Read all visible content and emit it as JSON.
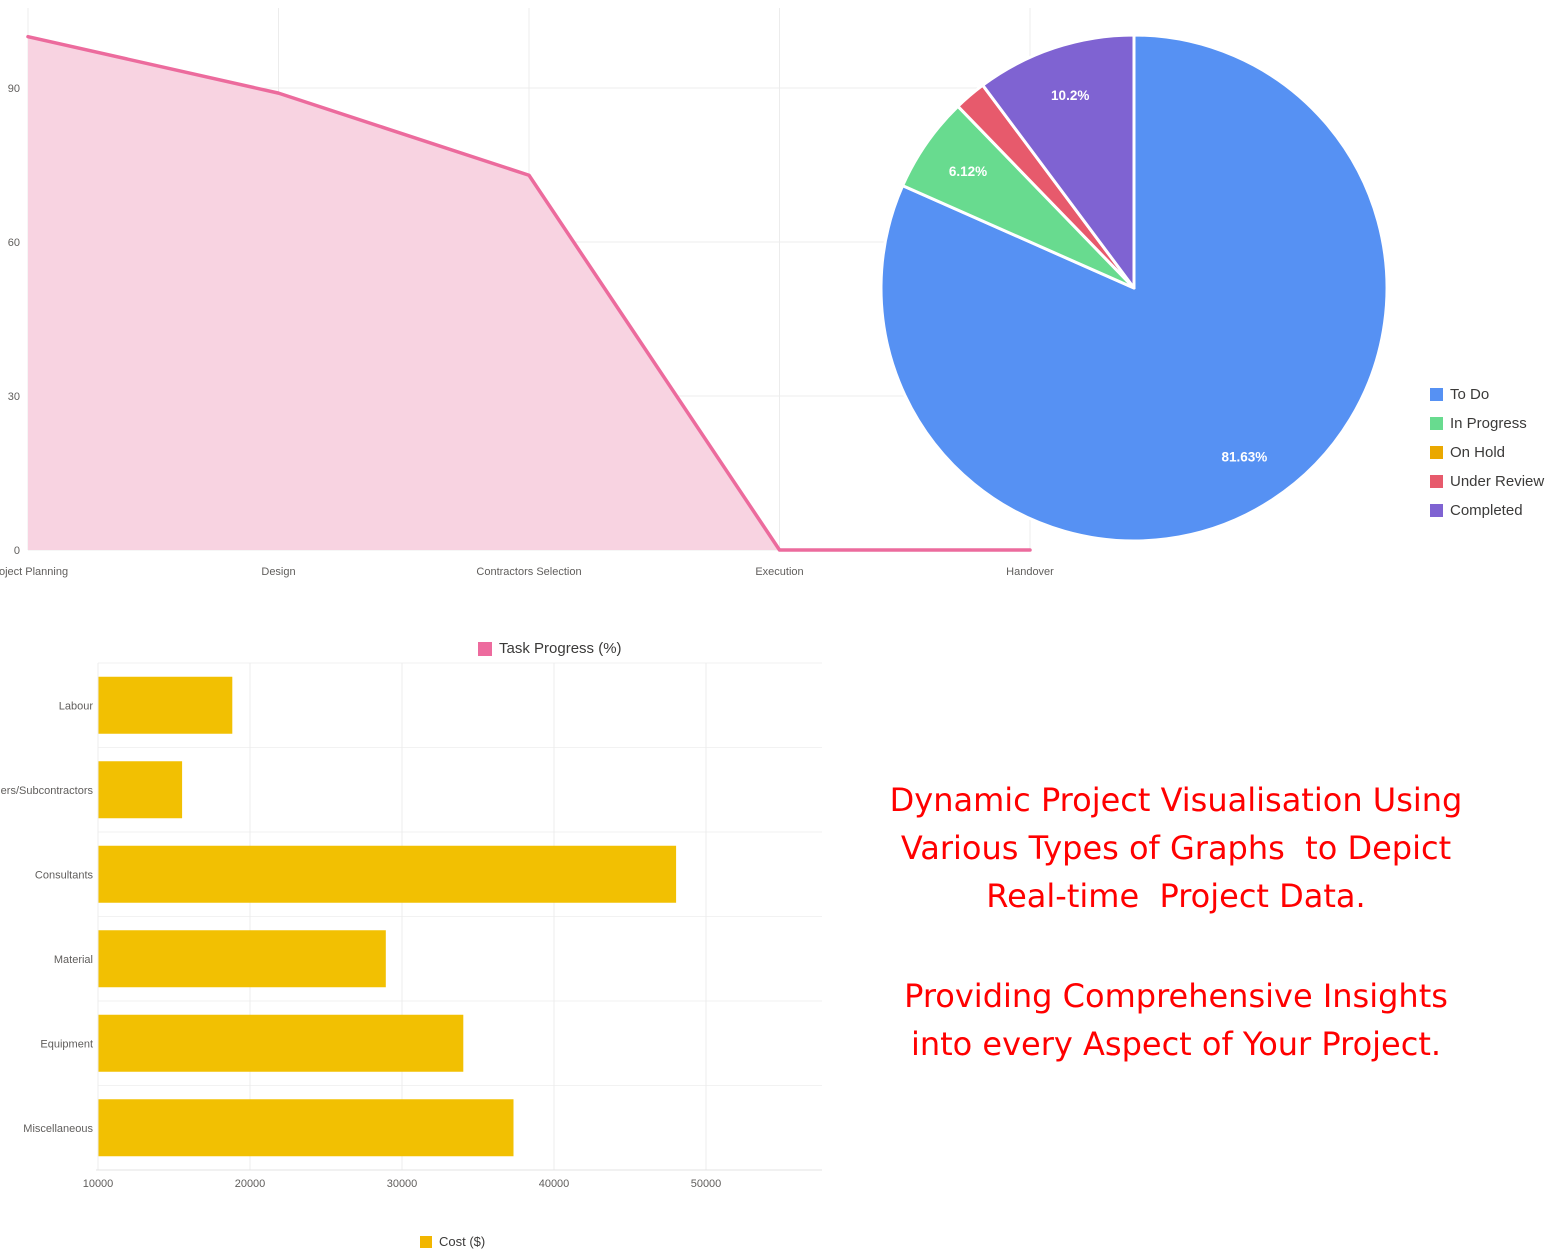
{
  "legends": {
    "area": {
      "label": "Task Progress (%)",
      "color": "#ed6b9e"
    },
    "bar": {
      "label": "Cost ($)",
      "color": "#f2b600"
    }
  },
  "caption": {
    "color": "#ff0000",
    "block1": [
      "Dynamic Project Visualisation Using",
      "Various Types of Graphs  to Depict",
      "Real-time  Project Data."
    ],
    "block2": [
      "Providing Comprehensive Insights",
      "into every Aspect of Your Project."
    ]
  },
  "chart_data": [
    {
      "id": "task-progress-area",
      "type": "area",
      "title": "",
      "legend": "Task Progress (%)",
      "legend_position": "bottom",
      "categories": [
        "Project Planning",
        "Design",
        "Contractors Selection",
        "Execution",
        "Handover"
      ],
      "values": [
        100,
        89,
        73,
        0,
        0
      ],
      "xlabel": "",
      "ylabel": "",
      "ylim": [
        0,
        100
      ],
      "yticks": [
        0,
        30,
        60,
        90
      ],
      "grid": true,
      "line_color": "#ec6b9d",
      "fill_color": "#f8d3e1"
    },
    {
      "id": "task-status-pie",
      "type": "pie",
      "title": "",
      "legend_position": "right",
      "labels": [
        "To Do",
        "In Progress",
        "On Hold",
        "Under Review",
        "Completed"
      ],
      "values": [
        81.63,
        6.12,
        0,
        2.05,
        10.2
      ],
      "data_labels": [
        "81.63%",
        "6.12%",
        "",
        "",
        "10.2%"
      ],
      "colors": [
        "#5691f3",
        "#68db8f",
        "#eaa800",
        "#e75a6c",
        "#7f63d2"
      ],
      "start_angle_deg": 0,
      "direction": "clockwise"
    },
    {
      "id": "cost-bar",
      "type": "bar",
      "orientation": "horizontal",
      "title": "",
      "legend": "Cost ($)",
      "legend_position": "bottom",
      "categories": [
        "Labour",
        "Suppliers/Subcontractors",
        "Consultants",
        "Material",
        "Equipment",
        "Miscellaneous"
      ],
      "values": [
        18800,
        15500,
        48000,
        28900,
        34000,
        37300
      ],
      "xticks": [
        10000,
        20000,
        30000,
        40000,
        50000
      ],
      "xlim": [
        10000,
        57500
      ],
      "grid": true,
      "bar_color": "#f2c002"
    }
  ]
}
